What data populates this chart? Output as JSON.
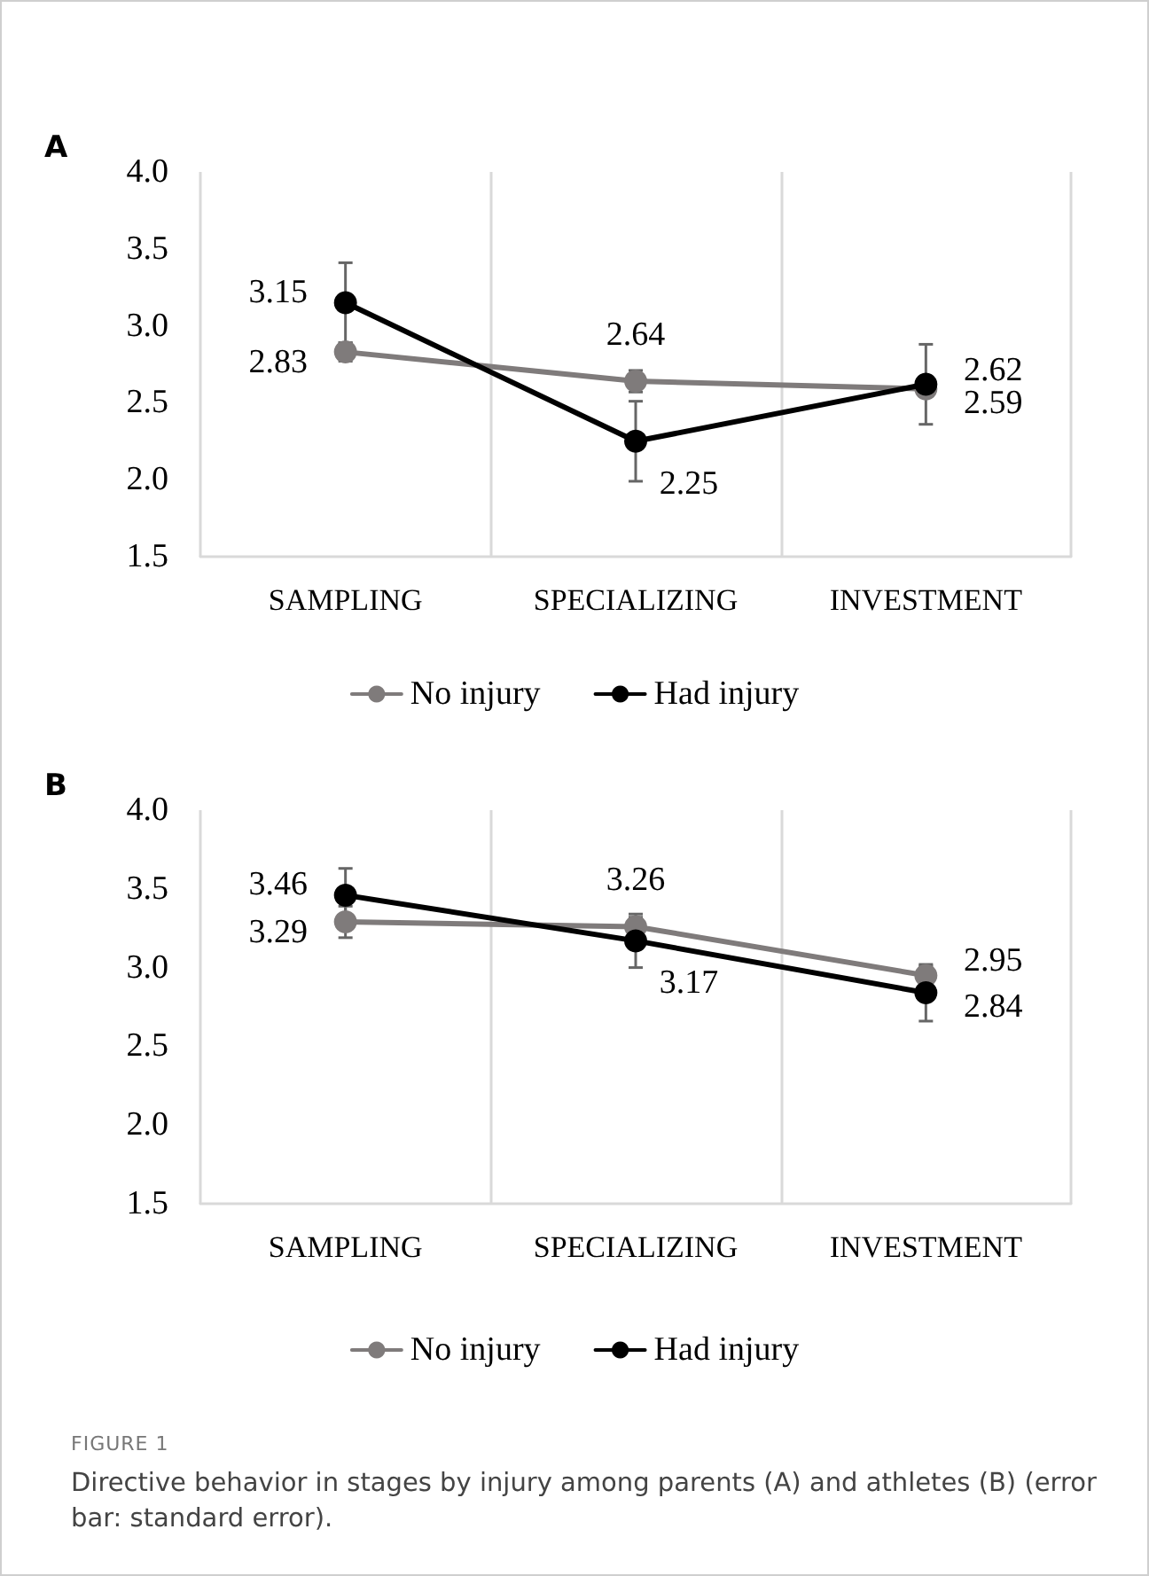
{
  "chart_data": [
    {
      "type": "line",
      "title": "A",
      "categories": [
        "SAMPLING",
        "SPECIALIZING",
        "INVESTMENT"
      ],
      "series": [
        {
          "name": "No injury",
          "color": "#7f7b7b",
          "values": [
            2.83,
            2.64,
            2.59
          ],
          "errors": [
            0.06,
            0.07,
            0.05
          ]
        },
        {
          "name": "Had injury",
          "color": "#000000",
          "values": [
            3.15,
            2.25,
            2.62
          ],
          "errors": [
            0.26,
            0.26,
            0.26
          ]
        }
      ],
      "ylim": [
        1.5,
        4
      ],
      "yticks": [
        1.5,
        {
          "value": 2,
          "label": "2.0"
        },
        2.5,
        {
          "value": 3,
          "label": "3.0"
        },
        3.5,
        {
          "value": 4,
          "label": "4.0"
        }
      ],
      "grid": "x",
      "legend": "bottom",
      "marker": "circle",
      "line_style": "solid",
      "data_labels": true
    },
    {
      "type": "line",
      "title": "B",
      "categories": [
        "SAMPLING",
        "SPECIALIZING",
        "INVESTMENT"
      ],
      "series": [
        {
          "name": "No injury",
          "color": "#7f7b7b",
          "values": [
            3.29,
            3.26,
            2.95
          ],
          "errors": [
            0.1,
            0.06,
            0.06
          ]
        },
        {
          "name": "Had injury",
          "color": "#000000",
          "values": [
            3.46,
            3.17,
            2.84
          ],
          "errors": [
            0.17,
            0.17,
            0.18
          ]
        }
      ],
      "ylim": [
        1.5,
        4
      ],
      "yticks": [
        1.5,
        {
          "value": 2,
          "label": "2.0"
        },
        2.5,
        {
          "value": 3,
          "label": "3.0"
        },
        3.5,
        {
          "value": 4,
          "label": "4.0"
        }
      ],
      "grid": "x",
      "legend": "bottom",
      "marker": "circle",
      "line_style": "solid",
      "data_labels": true,
      "annotations": [
        "FIGURE 1",
        "Directive behavior in stages by injury among parents (A) and athletes (B) (error bar: standard error)."
      ]
    }
  ]
}
